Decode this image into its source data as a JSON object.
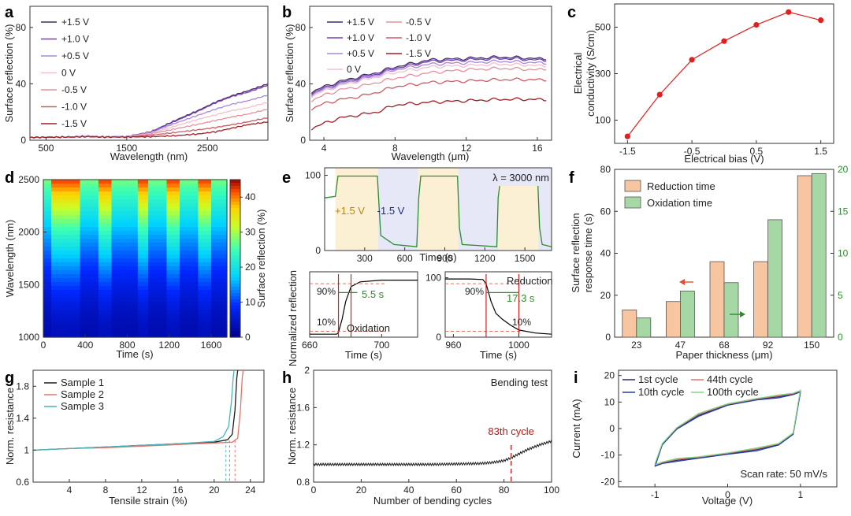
{
  "chart_data": [
    {
      "panel": "a",
      "type": "line",
      "xlabel": "Wavelength (nm)",
      "ylabel": "Surface reflection (%)",
      "xlim": [
        300,
        3250
      ],
      "ylim": [
        0,
        95
      ],
      "xticks": [
        500,
        1500,
        2500
      ],
      "yticks": [
        0,
        40,
        80
      ],
      "legend_loc": "top-left",
      "grid": false,
      "series": [
        {
          "name": "+1.5 V",
          "color": "#3f2a6e",
          "x": [
            300,
            800,
            1000,
            1200,
            1500,
            1800,
            2100,
            2400,
            2600,
            2800,
            3000,
            3250
          ],
          "y": [
            2,
            2.4,
            3,
            2.5,
            2.6,
            6,
            14,
            21.5,
            27,
            31.5,
            35,
            40
          ]
        },
        {
          "name": "+1.0 V",
          "color": "#7840b0",
          "x": [
            300,
            800,
            1000,
            1200,
            1500,
            1800,
            2100,
            2400,
            2600,
            2800,
            3000,
            3250
          ],
          "y": [
            2,
            2.4,
            3,
            2.5,
            2.6,
            6,
            13.5,
            21,
            26.5,
            31,
            34,
            39
          ]
        },
        {
          "name": "+0.5 V",
          "color": "#a986dd",
          "x": [
            300,
            800,
            1000,
            1200,
            1500,
            1800,
            2100,
            2400,
            2600,
            2800,
            3000,
            3250
          ],
          "y": [
            2,
            2.4,
            3,
            2.5,
            2.6,
            5.5,
            12,
            18,
            22,
            25.5,
            28,
            32
          ]
        },
        {
          "name": "0 V",
          "color": "#f0c0cc",
          "x": [
            300,
            800,
            1000,
            1200,
            1500,
            1800,
            2100,
            2400,
            2600,
            2800,
            3000,
            3250
          ],
          "y": [
            2,
            2.3,
            2.8,
            2.4,
            2.5,
            5,
            10,
            15,
            18,
            21,
            23,
            27
          ]
        },
        {
          "name": "-0.5 V",
          "color": "#e5909c",
          "x": [
            300,
            800,
            1000,
            1200,
            1500,
            1800,
            2100,
            2400,
            2600,
            2800,
            3000,
            3250
          ],
          "y": [
            2,
            2.3,
            2.7,
            2.4,
            2.4,
            4.5,
            8,
            11.5,
            14,
            16.5,
            18.5,
            22
          ]
        },
        {
          "name": "-1.0 V",
          "color": "#d05a64",
          "x": [
            300,
            800,
            1000,
            1200,
            1500,
            1800,
            2100,
            2400,
            2600,
            2800,
            3000,
            3250
          ],
          "y": [
            2,
            2.3,
            2.6,
            2.3,
            2.3,
            3.5,
            5.5,
            7.5,
            9,
            11,
            13,
            16
          ]
        },
        {
          "name": "-1.5 V",
          "color": "#9e1e24",
          "x": [
            300,
            800,
            1000,
            1200,
            1500,
            1800,
            2100,
            2400,
            2600,
            2800,
            3000,
            3250
          ],
          "y": [
            2,
            2.2,
            2.5,
            2.2,
            2.2,
            2.5,
            3.2,
            4.5,
            6,
            8.5,
            11,
            13
          ]
        }
      ]
    },
    {
      "panel": "b",
      "type": "line",
      "xlabel": "Wavelength (μm)",
      "ylabel": "Surface reflection (%)",
      "xlim": [
        3.2,
        16.8
      ],
      "ylim": [
        0,
        95
      ],
      "xticks": [
        4,
        8,
        12,
        16
      ],
      "yticks": [
        0,
        40,
        80
      ],
      "legend_loc": "top",
      "grid": false,
      "series": [
        {
          "name": "+1.5 V",
          "color": "#3f2a6e",
          "x": [
            3.3,
            4,
            5,
            6,
            7,
            8,
            10,
            12,
            14,
            16,
            16.5
          ],
          "y": [
            34,
            38,
            42,
            45,
            48,
            52,
            57,
            58,
            59,
            58,
            57
          ]
        },
        {
          "name": "+1.0 V",
          "color": "#7840b0",
          "x": [
            3.3,
            4,
            5,
            6,
            7,
            8,
            10,
            12,
            14,
            16,
            16.5
          ],
          "y": [
            33,
            37,
            41,
            44,
            47,
            51,
            56,
            57,
            58,
            57,
            56
          ]
        },
        {
          "name": "+0.5 V",
          "color": "#a986dd",
          "x": [
            3.3,
            4,
            5,
            6,
            7,
            8,
            10,
            12,
            14,
            16,
            16.5
          ],
          "y": [
            32,
            36,
            40,
            43,
            46,
            50,
            54,
            55,
            56,
            55,
            54
          ]
        },
        {
          "name": "0 V",
          "color": "#f0c0cc",
          "x": [
            3.3,
            4,
            5,
            6,
            7,
            8,
            10,
            12,
            14,
            16,
            16.5
          ],
          "y": [
            31,
            35,
            39,
            42,
            45,
            48,
            52,
            53,
            54,
            53,
            52
          ]
        },
        {
          "name": "-0.5 V",
          "color": "#e5909c",
          "x": [
            3.3,
            4,
            5,
            6,
            7,
            8,
            10,
            12,
            14,
            16,
            16.5
          ],
          "y": [
            28,
            32,
            36,
            38,
            41,
            44,
            48,
            50,
            51,
            50,
            50
          ]
        },
        {
          "name": "-1.0 V",
          "color": "#d05a64",
          "x": [
            3.3,
            4,
            5,
            6,
            7,
            8,
            10,
            12,
            14,
            16,
            16.5
          ],
          "y": [
            22,
            26,
            29,
            31,
            34,
            38,
            41,
            42,
            43,
            43,
            42
          ]
        },
        {
          "name": "-1.5 V",
          "color": "#9e1e24",
          "x": [
            3.3,
            4,
            5,
            6,
            7,
            8,
            10,
            12,
            14,
            16,
            16.5
          ],
          "y": [
            8,
            12,
            16,
            18,
            20,
            25,
            27,
            28,
            29,
            29,
            28
          ]
        }
      ]
    },
    {
      "panel": "c",
      "type": "scatter",
      "xlabel": "Electrical bias (V)",
      "ylabel": "Electrical conductivity (S/cm)",
      "xlim": [
        -1.7,
        1.7
      ],
      "ylim": [
        0,
        600
      ],
      "xticks": [
        -1.5,
        -0.5,
        0.5,
        1.5
      ],
      "yticks": [
        100,
        300,
        500
      ],
      "grid": false,
      "series": [
        {
          "color": "#e02020",
          "x": [
            -1.5,
            -1.0,
            -0.5,
            0,
            0.5,
            1.0,
            1.5
          ],
          "y": [
            30,
            210,
            360,
            440,
            510,
            565,
            530
          ]
        }
      ]
    },
    {
      "panel": "d",
      "type": "heatmap",
      "xlabel": "Time (s)",
      "ylabel": "Wavelength (nm)",
      "colorbar_label": "Surface reflection (%)",
      "xlim": [
        0,
        1750
      ],
      "ylim": [
        1000,
        2500
      ],
      "xticks": [
        0,
        400,
        800,
        1200,
        1600
      ],
      "yticks": [
        1000,
        1500,
        2000,
        2500
      ],
      "colorbar_ticks": [
        0,
        10,
        20,
        30,
        40
      ],
      "high_state_intervals": [
        [
          80,
          340
        ],
        [
          530,
          650
        ],
        [
          900,
          1000
        ],
        [
          1180,
          1300
        ],
        [
          1480,
          1600
        ]
      ],
      "low_state_intervals": [
        [
          340,
          530
        ],
        [
          650,
          900
        ],
        [
          1000,
          1180
        ],
        [
          1300,
          1480
        ],
        [
          1600,
          1750
        ]
      ]
    },
    {
      "panel": "e",
      "type": "line",
      "xlabel": "Time (s)",
      "ylabel": "Normalized reflection",
      "annotation": "λ = 3000 nm",
      "xlim": [
        0,
        1700
      ],
      "ylim": [
        0,
        110
      ],
      "xticks": [
        300,
        600,
        900,
        1200,
        1500
      ],
      "yticks": [
        0,
        100
      ],
      "bias_labels": [
        "+1.5 V",
        "-1.5 V"
      ],
      "oxidation_windows": [
        [
          80,
          400
        ],
        [
          700,
          1000
        ],
        [
          1300,
          1600
        ]
      ],
      "reduction_windows": [
        [
          400,
          700
        ],
        [
          1000,
          1300
        ],
        [
          1600,
          1700
        ]
      ],
      "series": [
        {
          "color": "#2e8b2e",
          "x": [
            0,
            80,
            100,
            395,
            420,
            520,
            690,
            705,
            720,
            995,
            1010,
            1030,
            1290,
            1300,
            1320,
            1595,
            1610,
            1630,
            1700
          ],
          "y": [
            70,
            72,
            99,
            99,
            20,
            8,
            5,
            70,
            99,
            99,
            30,
            8,
            5,
            70,
            99,
            99,
            30,
            8,
            5
          ]
        }
      ],
      "insets": [
        {
          "label": "Oxidation",
          "xlim": [
            660,
            720
          ],
          "xticks": [
            660,
            700
          ],
          "ylim": [
            0,
            110
          ],
          "yticks": [],
          "xlabel": "Time (s)",
          "levels": [
            "90%",
            "10%"
          ],
          "response_label": "5.5 s",
          "series": [
            {
              "color": "#000000",
              "x": [
                660,
                670,
                675,
                676,
                678,
                680,
                683,
                688,
                700,
                720
              ],
              "y": [
                5,
                5,
                5,
                8,
                30,
                60,
                85,
                93,
                96,
                96
              ]
            }
          ]
        },
        {
          "label": "Reduction",
          "xlim": [
            955,
            1020
          ],
          "xticks": [
            960,
            1000
          ],
          "ylim": [
            0,
            110
          ],
          "yticks": [
            0,
            100
          ],
          "xlabel": "Time (s)",
          "levels": [
            "90%",
            "10%"
          ],
          "response_label": "17.3 s",
          "series": [
            {
              "color": "#000000",
              "x": [
                955,
                970,
                978,
                980,
                983,
                986,
                990,
                995,
                1000,
                1010,
                1020
              ],
              "y": [
                98,
                98,
                97,
                90,
                60,
                40,
                30,
                20,
                12,
                7,
                5
              ]
            }
          ]
        }
      ]
    },
    {
      "panel": "f",
      "type": "bar",
      "xlabel": "Paper thickness (μm)",
      "ylabel": "Surface reflection response time (s)",
      "categories": [
        "23",
        "47",
        "68",
        "92",
        "150"
      ],
      "ylim": [
        0,
        80
      ],
      "yticks": [
        0,
        20,
        40,
        60,
        80
      ],
      "y2lim": [
        0,
        20
      ],
      "y2ticks": [
        0,
        5,
        10,
        15,
        20
      ],
      "legend_loc": "top-left",
      "series": [
        {
          "name": "Reduction time",
          "axis": "left",
          "color": "#f7c59f",
          "values": [
            13,
            17,
            36,
            36,
            77
          ]
        },
        {
          "name": "Oxidation time",
          "axis": "right",
          "color": "#a6d8a6",
          "values": [
            2.3,
            5.5,
            6.5,
            14,
            19.5
          ]
        }
      ]
    },
    {
      "panel": "g",
      "type": "line",
      "xlabel": "Tensile strain (%)",
      "ylabel": "Norm. resistance",
      "xlim": [
        0,
        25.5
      ],
      "ylim": [
        0.6,
        2.0
      ],
      "xticks": [
        4,
        8,
        12,
        16,
        20,
        24
      ],
      "yticks": [
        0.6,
        1.0,
        1.4,
        1.8
      ],
      "legend_loc": "top-left",
      "series": [
        {
          "name": "Sample 1",
          "color": "#1a1a1a",
          "x": [
            0,
            4,
            8,
            12,
            16,
            20,
            21.5,
            22,
            22.3,
            22.5,
            22.6
          ],
          "y": [
            1.0,
            1.02,
            1.04,
            1.06,
            1.08,
            1.1,
            1.13,
            1.2,
            1.5,
            1.9,
            2.0
          ]
        },
        {
          "name": "Sample 2",
          "color": "#e57368",
          "x": [
            0,
            4,
            8,
            12,
            16,
            20,
            22,
            22.6,
            22.9,
            23.1,
            23.2
          ],
          "y": [
            1.0,
            1.02,
            1.03,
            1.05,
            1.07,
            1.09,
            1.1,
            1.15,
            1.5,
            1.9,
            2.0
          ]
        },
        {
          "name": "Sample 3",
          "color": "#45b5ba",
          "x": [
            0,
            4,
            8,
            12,
            16,
            20,
            21,
            21.6,
            21.9,
            22.1,
            22.2
          ],
          "y": [
            1.0,
            1.02,
            1.04,
            1.06,
            1.08,
            1.11,
            1.17,
            1.3,
            1.6,
            1.9,
            2.0
          ]
        }
      ]
    },
    {
      "panel": "h",
      "type": "line",
      "xlabel": "Number of bending cycles",
      "ylabel": "Norm. resistance",
      "annotation": "Bending test",
      "marker_label": "83th cycle",
      "marker_x": 83,
      "xlim": [
        0,
        100
      ],
      "ylim": [
        0.8,
        2.0
      ],
      "xticks": [
        0,
        20,
        40,
        60,
        80,
        100
      ],
      "yticks": [
        0.8,
        1.2,
        1.6,
        2.0
      ],
      "series": [
        {
          "color": "#1a1a1a",
          "x": [
            0,
            10,
            20,
            30,
            40,
            50,
            60,
            70,
            75,
            80,
            83,
            86,
            90,
            95,
            100
          ],
          "y": [
            0.99,
            0.99,
            0.99,
            0.99,
            0.99,
            0.99,
            0.995,
            1.0,
            1.01,
            1.03,
            1.06,
            1.1,
            1.15,
            1.2,
            1.24
          ]
        }
      ]
    },
    {
      "panel": "i",
      "type": "line",
      "xlabel": "Voltage (V)",
      "ylabel": "Current (mA)",
      "annotation": "Scan rate: 50 mV/s",
      "xlim": [
        -1.5,
        1.5
      ],
      "ylim": [
        -22,
        22
      ],
      "xticks": [
        -1,
        0,
        1
      ],
      "yticks": [
        -20,
        -10,
        0,
        10,
        20
      ],
      "legend_loc": "top",
      "series": [
        {
          "name": "1st cycle",
          "color": "#2b2b6b"
        },
        {
          "name": "44th cycle",
          "color": "#e57368"
        },
        {
          "name": "10th cycle",
          "color": "#1f3fa8"
        },
        {
          "name": "100th cycle",
          "color": "#7fd87f"
        }
      ],
      "loop": {
        "upper": {
          "x": [
            -1,
            -0.9,
            -0.7,
            -0.4,
            0,
            0.4,
            0.7,
            0.9,
            1
          ],
          "y": [
            -14,
            -6,
            0,
            5,
            9,
            11,
            12,
            13,
            14
          ]
        },
        "lower": {
          "x": [
            1,
            0.9,
            0.7,
            0.4,
            0,
            -0.4,
            -0.7,
            -0.9,
            -1
          ],
          "y": [
            14,
            -2,
            -6,
            -8,
            -9.5,
            -11,
            -12,
            -13,
            -14
          ]
        }
      }
    }
  ]
}
